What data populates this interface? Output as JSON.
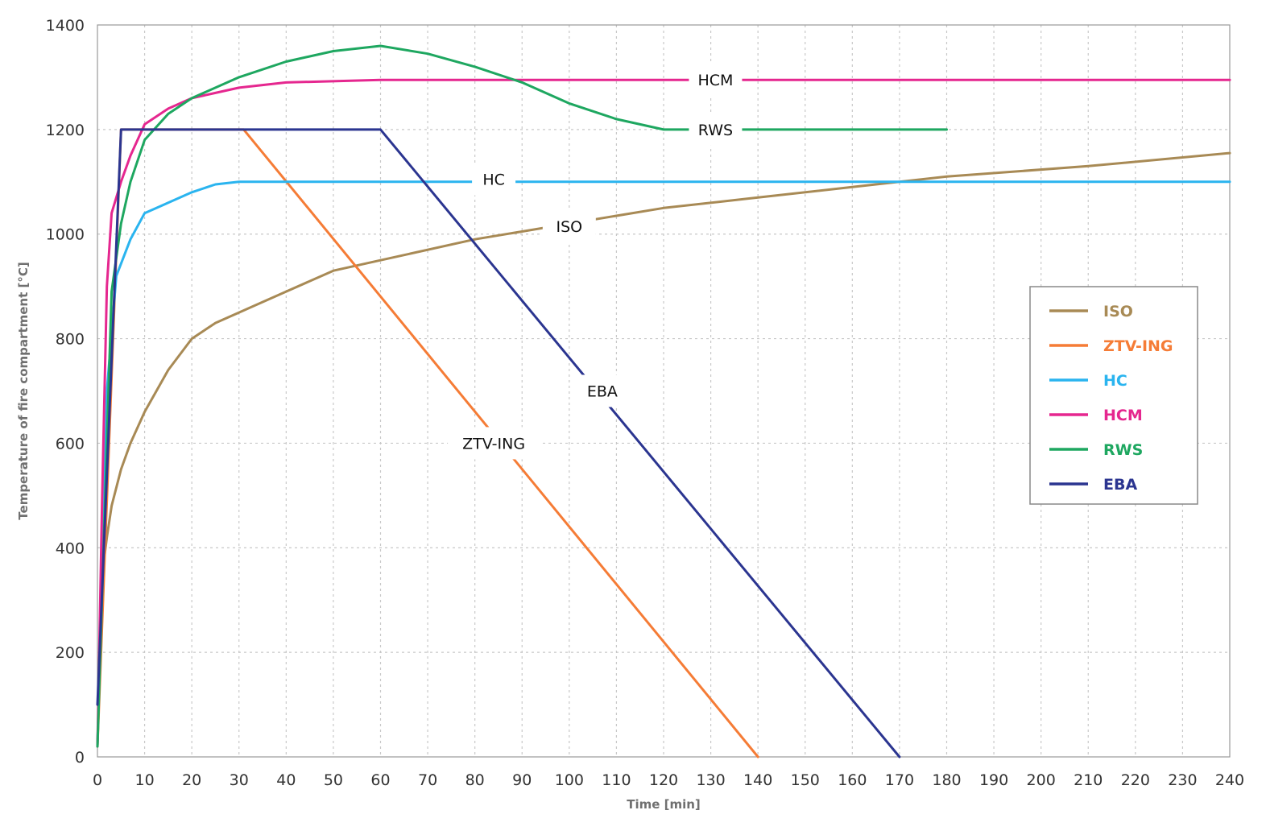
{
  "chart_data": {
    "type": "line",
    "title": "",
    "xlabel": "Time [min]",
    "ylabel": "Temperature of fire compartment [°C]",
    "xlim": [
      0,
      240
    ],
    "ylim": [
      0,
      1400
    ],
    "xticks": [
      0,
      10,
      20,
      30,
      40,
      50,
      60,
      70,
      80,
      90,
      100,
      110,
      120,
      130,
      140,
      150,
      160,
      170,
      180,
      190,
      200,
      210,
      220,
      230,
      240
    ],
    "yticks": [
      0,
      200,
      400,
      600,
      800,
      1000,
      1200,
      1400
    ],
    "grid": true,
    "legend_position": "right",
    "series": [
      {
        "name": "ISO",
        "color": "#a88a55",
        "x": [
          0,
          1,
          2,
          3,
          5,
          7,
          10,
          15,
          20,
          25,
          30,
          40,
          50,
          60,
          80,
          90,
          100,
          120,
          140,
          160,
          180,
          210,
          240
        ],
        "y": [
          20,
          350,
          420,
          480,
          550,
          600,
          660,
          740,
          800,
          830,
          850,
          890,
          930,
          950,
          990,
          1005,
          1020,
          1050,
          1070,
          1090,
          1110,
          1130,
          1155
        ]
      },
      {
        "name": "ZTV-ING",
        "color": "#f57c36",
        "x": [
          0,
          5,
          31,
          140
        ],
        "y": [
          20,
          1200,
          1200,
          0
        ]
      },
      {
        "name": "HC",
        "color": "#2ab4ef",
        "x": [
          0,
          2,
          4,
          7,
          10,
          15,
          20,
          25,
          30,
          40,
          60,
          240
        ],
        "y": [
          20,
          700,
          920,
          990,
          1040,
          1060,
          1080,
          1095,
          1100,
          1100,
          1100,
          1100
        ]
      },
      {
        "name": "HCM",
        "color": "#e5278f",
        "x": [
          0,
          1,
          2,
          3,
          5,
          7,
          10,
          15,
          20,
          25,
          30,
          40,
          60,
          90,
          240
        ],
        "y": [
          20,
          500,
          900,
          1040,
          1100,
          1150,
          1210,
          1240,
          1260,
          1270,
          1280,
          1290,
          1295,
          1295,
          1295
        ]
      },
      {
        "name": "RWS",
        "color": "#1ea760",
        "x": [
          0,
          2,
          3,
          5,
          7,
          10,
          15,
          20,
          30,
          40,
          50,
          60,
          70,
          80,
          90,
          100,
          110,
          120,
          180
        ],
        "y": [
          20,
          600,
          890,
          1020,
          1100,
          1180,
          1230,
          1260,
          1300,
          1330,
          1350,
          1360,
          1345,
          1320,
          1290,
          1250,
          1220,
          1200,
          1200
        ]
      },
      {
        "name": "EBA",
        "color": "#2b3590",
        "x": [
          0,
          5,
          60,
          170
        ],
        "y": [
          100,
          1200,
          1200,
          0
        ]
      }
    ],
    "annotations": [
      {
        "text": "HCM",
        "x": 131,
        "y": 1295
      },
      {
        "text": "RWS",
        "x": 131,
        "y": 1200
      },
      {
        "text": "HC",
        "x": 84,
        "y": 1105
      },
      {
        "text": "ISO",
        "x": 100,
        "y": 1015
      },
      {
        "text": "EBA",
        "x": 107,
        "y": 700
      },
      {
        "text": "ZTV-ING",
        "x": 84,
        "y": 600
      }
    ]
  }
}
